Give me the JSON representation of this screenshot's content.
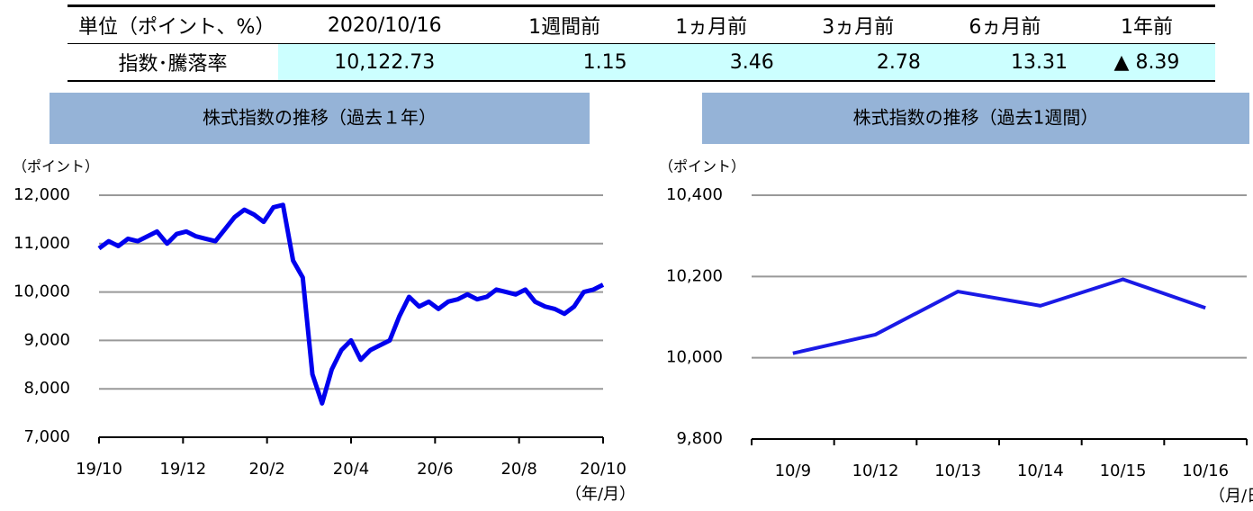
{
  "table": {
    "header": [
      "単位（ポイント、%）",
      "2020/10/16",
      "1週間前",
      "1ヵ月前",
      "3ヵ月前",
      "6ヵ月前",
      "1年前"
    ],
    "rows": [
      [
        "指数･騰落率",
        "10,122.73",
        "1.15",
        "3.46",
        "2.78",
        "13.31",
        "▲ 8.39"
      ]
    ]
  },
  "chart_data": [
    {
      "type": "line",
      "title": "株式指数の推移（過去１年）",
      "y_label": "（ポイント）",
      "x_label": "（年/月）",
      "x": [
        0,
        0.23,
        0.46,
        0.69,
        0.92,
        1.15,
        1.38,
        1.62,
        1.85,
        2.08,
        2.31,
        2.54,
        2.77,
        3,
        3.23,
        3.46,
        3.69,
        3.92,
        4.15,
        4.38,
        4.62,
        4.85,
        5.08,
        5.31,
        5.54,
        5.77,
        6,
        6.23,
        6.46,
        6.69,
        6.92,
        7.15,
        7.38,
        7.62,
        7.85,
        8.08,
        8.31,
        8.54,
        8.77,
        9,
        9.23,
        9.46,
        9.69,
        9.92,
        10.15,
        10.38,
        10.62,
        10.85,
        11.08,
        11.31,
        11.54,
        11.77,
        12
      ],
      "series": [
        {
          "color": "#0000ee",
          "values": [
            10900,
            11050,
            10950,
            11100,
            11050,
            11150,
            11250,
            11000,
            11200,
            11250,
            11150,
            11100,
            11050,
            11300,
            11550,
            11700,
            11600,
            11450,
            11750,
            11800,
            10650,
            10300,
            8300,
            7700,
            8400,
            8800,
            9000,
            8600,
            8800,
            8900,
            9000,
            9500,
            9900,
            9700,
            9800,
            9650,
            9800,
            9850,
            9950,
            9850,
            9900,
            10050,
            10000,
            9950,
            10050,
            9800,
            9700,
            9650,
            9550,
            9700,
            10000,
            10050,
            10150
          ]
        }
      ],
      "xlim": [
        0,
        12
      ],
      "xticks": [
        {
          "value": 0,
          "label": "19/10"
        },
        {
          "value": 2,
          "label": "19/12"
        },
        {
          "value": 4,
          "label": "20/2"
        },
        {
          "value": 6,
          "label": "20/4"
        },
        {
          "value": 8,
          "label": "20/6"
        },
        {
          "value": 10,
          "label": "20/8"
        },
        {
          "value": 12,
          "label": "20/10"
        }
      ],
      "ylim": [
        7000,
        12000
      ],
      "yticks": [
        {
          "value": 7000,
          "label": "7,000"
        },
        {
          "value": 8000,
          "label": "8,000"
        },
        {
          "value": 9000,
          "label": "9,000"
        },
        {
          "value": 10000,
          "label": "10,000"
        },
        {
          "value": 11000,
          "label": "11,000"
        },
        {
          "value": 12000,
          "label": "12,000"
        }
      ],
      "grid": true
    },
    {
      "type": "line",
      "title": "株式指数の推移（過去1週間）",
      "y_label": "（ポイント）",
      "x_label": "（月/日）",
      "categories": [
        "10/9",
        "10/12",
        "10/13",
        "10/14",
        "10/15",
        "10/16"
      ],
      "series": [
        {
          "color": "#1a1ae6",
          "values": [
            10011,
            10057,
            10163,
            10128,
            10193,
            10122.73
          ]
        }
      ],
      "ylim": [
        9800,
        10400
      ],
      "yticks": [
        {
          "value": 9800,
          "label": "9,800"
        },
        {
          "value": 10000,
          "label": "10,000"
        },
        {
          "value": 10200,
          "label": "10,200"
        },
        {
          "value": 10400,
          "label": "10,400"
        }
      ],
      "grid": true
    }
  ]
}
